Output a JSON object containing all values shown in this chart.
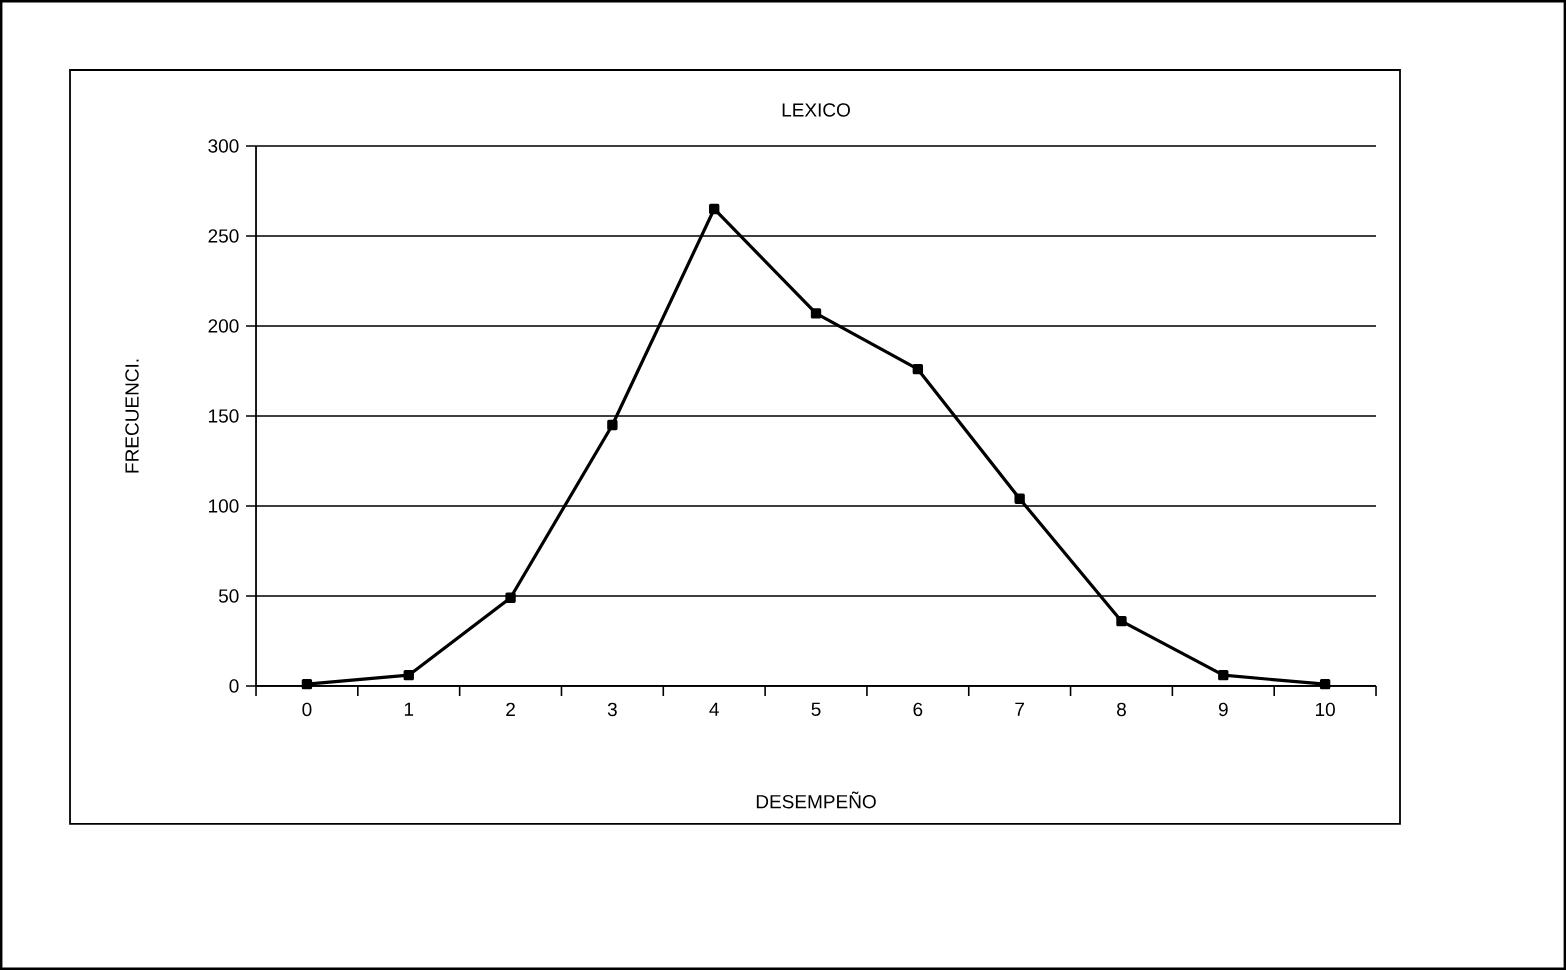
{
  "chart_data": {
    "type": "line",
    "title": "LEXICO",
    "xlabel": "DESEMPEÑO",
    "ylabel": "FRECUENCI.",
    "categories": [
      "0",
      "1",
      "2",
      "3",
      "4",
      "5",
      "6",
      "7",
      "8",
      "9",
      "10"
    ],
    "series": [
      {
        "color": "#000000",
        "values": [
          1,
          6,
          49,
          145,
          265,
          207,
          176,
          104,
          36,
          6,
          1
        ]
      }
    ],
    "ylim": [
      0,
      300
    ],
    "yticks": [
      0,
      50,
      100,
      150,
      200,
      250,
      300
    ],
    "grid": "y",
    "marker": "square",
    "line_style": "solid"
  }
}
